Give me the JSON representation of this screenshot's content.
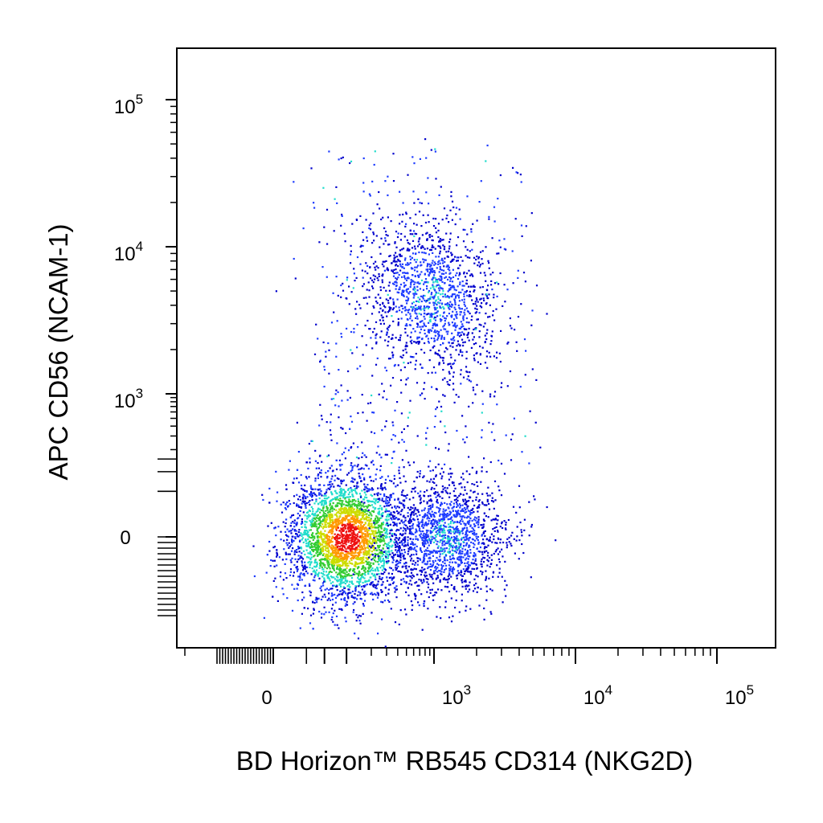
{
  "chart_data": {
    "type": "scatter",
    "subtype": "flow-cytometry-density-dot-plot",
    "xlabel": "BD Horizon™ RB545  CD314 (NKG2D)",
    "ylabel": "APC CD56 (NCAM-1)",
    "x_scale": "biexponential",
    "y_scale": "biexponential",
    "x_ticks": [
      {
        "value": 0,
        "base": "0",
        "exp": ""
      },
      {
        "value": 1000,
        "base": "10",
        "exp": "3"
      },
      {
        "value": 10000,
        "base": "10",
        "exp": "4"
      },
      {
        "value": 100000,
        "base": "10",
        "exp": "5"
      }
    ],
    "y_ticks": [
      {
        "value": 0,
        "base": "0",
        "exp": ""
      },
      {
        "value": 1000,
        "base": "10",
        "exp": "3"
      },
      {
        "value": 10000,
        "base": "10",
        "exp": "4"
      },
      {
        "value": 100000,
        "base": "10",
        "exp": "5"
      }
    ],
    "grid": false,
    "legend": "none",
    "density_colors": [
      "#0000cc",
      "#1e3cff",
      "#22ddcc",
      "#33cc33",
      "#ccdd00",
      "#ff9900",
      "#ee1111"
    ],
    "populations": [
      {
        "center_x": 100,
        "center_y": 0,
        "events": 3400
      },
      {
        "center_x": 1200,
        "center_y": 0,
        "events": 1500
      },
      {
        "center_x": 900,
        "center_y": 4500,
        "events": 1300
      }
    ]
  }
}
